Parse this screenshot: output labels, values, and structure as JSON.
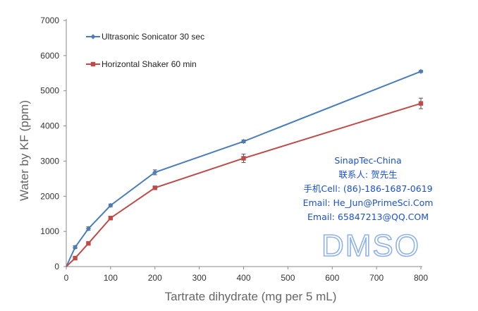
{
  "chart_data": {
    "type": "line",
    "title": "",
    "xlabel": "Tartrate dihydrate (mg per 5 mL)",
    "ylabel": "Water by KF (ppm)",
    "xlim": [
      0,
      800
    ],
    "ylim": [
      0,
      7000
    ],
    "xticks": [
      0,
      100,
      200,
      300,
      400,
      500,
      600,
      700,
      800
    ],
    "yticks": [
      0,
      1000,
      2000,
      3000,
      4000,
      5000,
      6000,
      7000
    ],
    "grid": false,
    "legend_position": "top-left",
    "series": [
      {
        "name": "Ultrasonic Sonicator 30 sec",
        "color": "#4a7ebb",
        "marker": "diamond",
        "x": [
          0,
          20,
          50,
          100,
          200,
          400,
          800
        ],
        "y": [
          0,
          550,
          1080,
          1740,
          2680,
          3560,
          5550
        ],
        "error": [
          0,
          40,
          50,
          40,
          70,
          40,
          30
        ]
      },
      {
        "name": "Horizontal Shaker 60 min",
        "color": "#be4b48",
        "marker": "square",
        "x": [
          0,
          20,
          50,
          100,
          200,
          400,
          800
        ],
        "y": [
          0,
          240,
          660,
          1380,
          2240,
          3080,
          4640
        ],
        "error": [
          0,
          30,
          40,
          50,
          40,
          120,
          150
        ]
      }
    ]
  },
  "watermark": {
    "lines": [
      "SinapTec-China",
      "联系人: 贺先生",
      "手机Cell: (86)-186-1687-0619",
      "Email: He_Jun@PrimeSci.Com",
      "Email: 65847213@QQ.COM"
    ],
    "big": "DMSO",
    "color": "#1a4fd6"
  }
}
